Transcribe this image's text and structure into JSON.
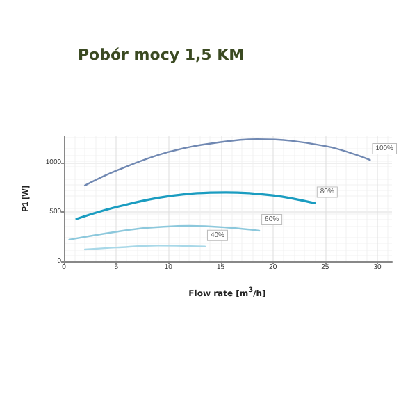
{
  "chart_data": {
    "type": "line",
    "title": "Pobór mocy 1,5 KM",
    "xlabel": "Flow rate [m$^{3}$/h]",
    "ylabel": "P1 [W]",
    "xlim": [
      0,
      31.4
    ],
    "xticks": [
      0,
      5,
      10,
      15,
      20,
      25,
      30
    ],
    "ylim": [
      0,
      1270
    ],
    "yticks": [
      0,
      500,
      1000
    ],
    "grid": true,
    "marker": "none",
    "line_style": "solid",
    "series": [
      {
        "name": "100%",
        "color": "#7088b2",
        "x": [
          2,
          5,
          10,
          15,
          18.5,
          25,
          29.3
        ],
        "values": [
          770,
          920,
          1110,
          1210,
          1240,
          1170,
          1030
        ]
      },
      {
        "name": "80%",
        "color": "#1a9cc0",
        "x": [
          1.2,
          5,
          10,
          15.5,
          20,
          24
        ],
        "values": [
          430,
          550,
          660,
          700,
          670,
          590
        ]
      },
      {
        "name": "60%",
        "color": "#8cc8dc",
        "x": [
          0.5,
          5,
          8,
          12,
          16,
          18.7
        ],
        "values": [
          220,
          300,
          340,
          360,
          340,
          310
        ]
      },
      {
        "name": "40%",
        "color": "#a8d8e8",
        "x": [
          2,
          5,
          9,
          13.5
        ],
        "values": [
          120,
          140,
          160,
          150
        ]
      }
    ]
  }
}
